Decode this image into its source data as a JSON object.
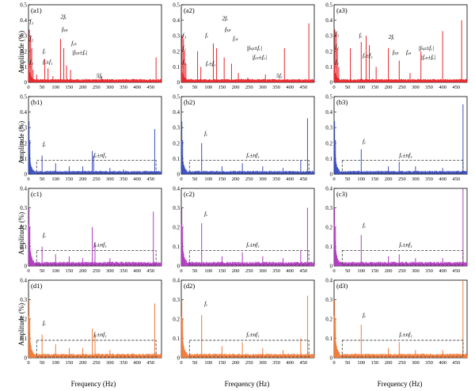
{
  "figure": {
    "y_axis_label": "Amplitude (%)",
    "x_axis_label": "Frequency (Hz)"
  },
  "chart_data": {
    "type": "line",
    "layout": "4x3 grid of spectra",
    "x_range": [
      0,
      490
    ],
    "x_ticks": [
      0,
      50,
      100,
      150,
      200,
      250,
      300,
      350,
      400,
      450
    ],
    "rows": [
      {
        "id": "a",
        "color": "#e8262c",
        "ylim": [
          0,
          0.5
        ],
        "y_ticks": [
          0,
          0.1,
          0.2,
          0.3,
          0.4,
          0.5
        ],
        "panels": [
          {
            "label": "(a1)",
            "peaks": [
              [
                3,
                0.34
              ],
              [
                8,
                0.3
              ],
              [
                12,
                0.22
              ],
              [
                17,
                0.08
              ],
              [
                30,
                0.05
              ],
              [
                60,
                0.15
              ],
              [
                72,
                0.09
              ],
              [
                90,
                0.04
              ],
              [
                118,
                0.28
              ],
              [
                130,
                0.22
              ],
              [
                140,
                0.11
              ],
              [
                155,
                0.08
              ],
              [
                240,
                0.02
              ],
              [
                270,
                0.04
              ],
              [
                470,
                0.16
              ]
            ],
            "annotations": [
              {
                "text": "f₃",
                "x": 4,
                "y": 0.38
              },
              {
                "text": "f₂",
                "x": 4,
                "y": 0.27
              },
              {
                "text": "f₁",
                "x": 4,
                "y": 0.12
              },
              {
                "text": "fₑ",
                "x": 52,
                "y": 0.19
              },
              {
                "text": "fₑ±f₁",
                "x": 52,
                "y": 0.12
              },
              {
                "text": "2fₑ",
                "x": 118,
                "y": 0.41
              },
              {
                "text": "fₛₚ",
                "x": 122,
                "y": 0.33
              },
              {
                "text": "fₑₛ",
                "x": 158,
                "y": 0.24
              },
              {
                "text": "|fₛₚ±fₑ|",
                "x": 160,
                "y": 0.18
              },
              {
                "text": "5fₑ",
                "x": 250,
                "y": 0.03
              }
            ]
          },
          {
            "label": "(a2)",
            "peaks": [
              [
                3,
                0.3
              ],
              [
                8,
                0.28
              ],
              [
                12,
                0.2
              ],
              [
                17,
                0.12
              ],
              [
                60,
                0.2
              ],
              [
                72,
                0.1
              ],
              [
                118,
                0.25
              ],
              [
                130,
                0.22
              ],
              [
                158,
                0.16
              ],
              [
                185,
                0.12
              ],
              [
                210,
                0.06
              ],
              [
                245,
                0.03
              ],
              [
                310,
                0.05
              ],
              [
                380,
                0.22
              ],
              [
                470,
                0.38
              ]
            ],
            "annotations": [
              {
                "text": "f₃",
                "x": 4,
                "y": 0.29
              },
              {
                "text": "f₂",
                "x": 4,
                "y": 0.21
              },
              {
                "text": "f₁",
                "x": 4,
                "y": 0.12
              },
              {
                "text": "fₑ",
                "x": 88,
                "y": 0.29
              },
              {
                "text": "fₑ±f₁",
                "x": 90,
                "y": 0.11
              },
              {
                "text": "2fₑ",
                "x": 150,
                "y": 0.4
              },
              {
                "text": "fₛₚ",
                "x": 160,
                "y": 0.33
              },
              {
                "text": "fₑₛ",
                "x": 190,
                "y": 0.27
              },
              {
                "text": "|fₛₚ±fₑ|",
                "x": 240,
                "y": 0.21
              },
              {
                "text": "|fₑₛ±fₑ|",
                "x": 260,
                "y": 0.15
              },
              {
                "text": "5fₑ",
                "x": 350,
                "y": 0.03
              }
            ]
          },
          {
            "label": "(a3)",
            "peaks": [
              [
                3,
                0.34
              ],
              [
                8,
                0.32
              ],
              [
                12,
                0.22
              ],
              [
                17,
                0.1
              ],
              [
                60,
                0.22
              ],
              [
                100,
                0.26
              ],
              [
                118,
                0.3
              ],
              [
                130,
                0.24
              ],
              [
                155,
                0.1
              ],
              [
                200,
                0.22
              ],
              [
                240,
                0.14
              ],
              [
                280,
                0.06
              ],
              [
                320,
                0.2
              ],
              [
                400,
                0.33
              ],
              [
                470,
                0.4
              ]
            ],
            "annotations": [
              {
                "text": "f₃",
                "x": 4,
                "y": 0.3
              },
              {
                "text": "f₂",
                "x": 4,
                "y": 0.22
              },
              {
                "text": "f₁",
                "x": 4,
                "y": 0.12
              },
              {
                "text": "fₑ",
                "x": 92,
                "y": 0.29
              },
              {
                "text": "fₑ±f₁",
                "x": 105,
                "y": 0.16
              },
              {
                "text": "2fₑ",
                "x": 200,
                "y": 0.28
              },
              {
                "text": "fₛₚ",
                "x": 215,
                "y": 0.18
              },
              {
                "text": "fₑₛ",
                "x": 265,
                "y": 0.18
              },
              {
                "text": "|fₛₚ±fₑ|",
                "x": 310,
                "y": 0.21
              },
              {
                "text": "|fₑₛ±fₑ|",
                "x": 320,
                "y": 0.15
              }
            ]
          }
        ]
      },
      {
        "id": "b",
        "color": "#3b4fbf",
        "ylim": [
          0,
          0.5
        ],
        "y_ticks": [
          0,
          0.1,
          0.2,
          0.3,
          0.4,
          0.5
        ],
        "panels": [
          {
            "label": "(b1)",
            "peaks": [
              [
                2,
                0.34
              ],
              [
                5,
                0.22
              ],
              [
                50,
                0.12
              ],
              [
                100,
                0.07
              ],
              [
                150,
                0.05
              ],
              [
                200,
                0.05
              ],
              [
                235,
                0.15
              ],
              [
                240,
                0.12
              ],
              [
                300,
                0.04
              ],
              [
                350,
                0.03
              ],
              [
                465,
                0.29
              ]
            ],
            "box": [
              30,
              470,
              0,
              0.09
            ],
            "annotations": [
              {
                "text": "fₑ",
                "x": 52,
                "y": 0.18
              },
              {
                "text": "fₑ±nf₁",
                "x": 240,
                "y": 0.11
              }
            ]
          },
          {
            "label": "(b2)",
            "peaks": [
              [
                2,
                0.34
              ],
              [
                5,
                0.22
              ],
              [
                75,
                0.2
              ],
              [
                150,
                0.05
              ],
              [
                225,
                0.07
              ],
              [
                300,
                0.05
              ],
              [
                375,
                0.04
              ],
              [
                440,
                0.09
              ],
              [
                465,
                0.36
              ]
            ],
            "box": [
              30,
              470,
              0,
              0.09
            ],
            "annotations": [
              {
                "text": "fₑ",
                "x": 85,
                "y": 0.25
              },
              {
                "text": "fₑ±nf₁",
                "x": 240,
                "y": 0.11
              }
            ]
          },
          {
            "label": "(b3)",
            "peaks": [
              [
                2,
                0.34
              ],
              [
                5,
                0.22
              ],
              [
                100,
                0.16
              ],
              [
                200,
                0.05
              ],
              [
                240,
                0.08
              ],
              [
                300,
                0.05
              ],
              [
                400,
                0.04
              ],
              [
                475,
                0.45
              ]
            ],
            "box": [
              30,
              475,
              0,
              0.09
            ],
            "annotations": [
              {
                "text": "fₑ",
                "x": 105,
                "y": 0.2
              },
              {
                "text": "fₑ±nf₁",
                "x": 240,
                "y": 0.11
              }
            ]
          }
        ]
      },
      {
        "id": "c",
        "color": "#b03cc0",
        "ylim": [
          0,
          0.4
        ],
        "y_ticks": [
          0,
          0.1,
          0.2,
          0.3,
          0.4
        ],
        "panels": [
          {
            "label": "(c1)",
            "peaks": [
              [
                2,
                0.3
              ],
              [
                5,
                0.2
              ],
              [
                50,
                0.1
              ],
              [
                100,
                0.06
              ],
              [
                150,
                0.05
              ],
              [
                200,
                0.04
              ],
              [
                235,
                0.2
              ],
              [
                245,
                0.12
              ],
              [
                300,
                0.04
              ],
              [
                460,
                0.28
              ]
            ],
            "box": [
              30,
              470,
              0,
              0.08
            ],
            "annotations": [
              {
                "text": "fₑ",
                "x": 52,
                "y": 0.15
              },
              {
                "text": "fₑ±nf₁",
                "x": 240,
                "y": 0.1
              }
            ]
          },
          {
            "label": "(c2)",
            "peaks": [
              [
                2,
                0.3
              ],
              [
                5,
                0.2
              ],
              [
                75,
                0.22
              ],
              [
                150,
                0.05
              ],
              [
                225,
                0.07
              ],
              [
                300,
                0.05
              ],
              [
                375,
                0.04
              ],
              [
                440,
                0.08
              ],
              [
                465,
                0.3
              ]
            ],
            "box": [
              30,
              470,
              0,
              0.08
            ],
            "annotations": [
              {
                "text": "fₑ",
                "x": 85,
                "y": 0.26
              },
              {
                "text": "fₑ±nf₁",
                "x": 240,
                "y": 0.1
              }
            ]
          },
          {
            "label": "(c3)",
            "peaks": [
              [
                2,
                0.3
              ],
              [
                5,
                0.2
              ],
              [
                100,
                0.16
              ],
              [
                200,
                0.05
              ],
              [
                240,
                0.06
              ],
              [
                300,
                0.04
              ],
              [
                400,
                0.04
              ],
              [
                475,
                0.4
              ]
            ],
            "box": [
              30,
              475,
              0,
              0.08
            ],
            "annotations": [
              {
                "text": "fₑ",
                "x": 105,
                "y": 0.2
              },
              {
                "text": "fₑ±nf₁",
                "x": 240,
                "y": 0.1
              }
            ]
          }
        ]
      },
      {
        "id": "d",
        "color": "#f07a3a",
        "ylim": [
          0,
          0.4
        ],
        "y_ticks": [
          0,
          0.1,
          0.2,
          0.3,
          0.4
        ],
        "panels": [
          {
            "label": "(d1)",
            "peaks": [
              [
                2,
                0.3
              ],
              [
                5,
                0.2
              ],
              [
                50,
                0.12
              ],
              [
                100,
                0.07
              ],
              [
                150,
                0.05
              ],
              [
                200,
                0.05
              ],
              [
                235,
                0.15
              ],
              [
                245,
                0.12
              ],
              [
                300,
                0.04
              ],
              [
                465,
                0.28
              ]
            ],
            "box": [
              30,
              470,
              0,
              0.09
            ],
            "annotations": [
              {
                "text": "fₑ",
                "x": 52,
                "y": 0.17
              },
              {
                "text": "fₑ±nf₁",
                "x": 240,
                "y": 0.11
              }
            ]
          },
          {
            "label": "(d2)",
            "peaks": [
              [
                2,
                0.3
              ],
              [
                5,
                0.2
              ],
              [
                75,
                0.22
              ],
              [
                150,
                0.06
              ],
              [
                225,
                0.08
              ],
              [
                300,
                0.05
              ],
              [
                375,
                0.04
              ],
              [
                440,
                0.1
              ],
              [
                465,
                0.32
              ]
            ],
            "box": [
              30,
              470,
              0,
              0.09
            ],
            "annotations": [
              {
                "text": "fₑ",
                "x": 85,
                "y": 0.27
              },
              {
                "text": "fₑ±nf₁",
                "x": 240,
                "y": 0.11
              }
            ]
          },
          {
            "label": "(d3)",
            "peaks": [
              [
                2,
                0.3
              ],
              [
                5,
                0.2
              ],
              [
                100,
                0.17
              ],
              [
                200,
                0.05
              ],
              [
                240,
                0.08
              ],
              [
                300,
                0.04
              ],
              [
                400,
                0.04
              ],
              [
                475,
                0.4
              ]
            ],
            "box": [
              30,
              475,
              0,
              0.09
            ],
            "annotations": [
              {
                "text": "fₑ",
                "x": 105,
                "y": 0.21
              },
              {
                "text": "fₑ±nf₁",
                "x": 240,
                "y": 0.11
              }
            ]
          }
        ]
      }
    ]
  }
}
